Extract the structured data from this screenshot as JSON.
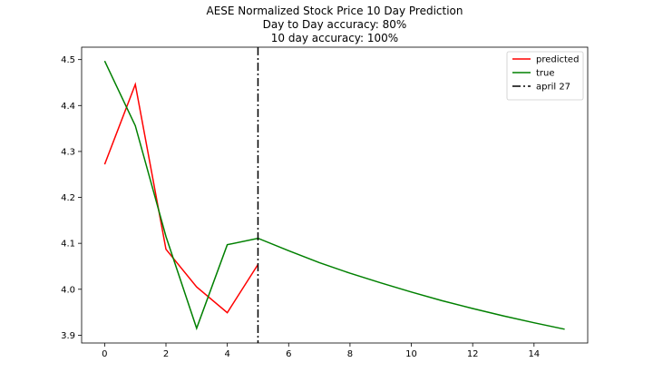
{
  "chart_data": {
    "type": "line",
    "title_lines": [
      "AESE Normalized Stock Price 10 Day Prediction",
      "Day to Day accuracy: 80%",
      "10 day accuracy: 100%"
    ],
    "xlabel": "",
    "ylabel": "",
    "xlim": [
      -0.75,
      15.75
    ],
    "ylim": [
      3.883,
      4.527
    ],
    "xticks": [
      0,
      2,
      4,
      6,
      8,
      10,
      12,
      14
    ],
    "yticks": [
      3.9,
      4.0,
      4.1,
      4.2,
      4.3,
      4.4,
      4.5
    ],
    "grid": false,
    "legend_position": "top-right",
    "series": [
      {
        "name": "predicted",
        "color": "#ff0000",
        "style": "solid",
        "x": [
          0,
          1,
          2,
          3,
          4,
          5
        ],
        "y": [
          4.272,
          4.446,
          4.087,
          4.005,
          3.949,
          4.054
        ]
      },
      {
        "name": "true",
        "color": "#008000",
        "style": "solid",
        "x": [
          0,
          1,
          2,
          3,
          4,
          5,
          6,
          7,
          8,
          9,
          10,
          11,
          12,
          13,
          14,
          15
        ],
        "y": [
          4.497,
          4.356,
          4.115,
          3.915,
          4.097,
          4.111,
          4.084,
          4.058,
          4.035,
          4.014,
          3.994,
          3.975,
          3.958,
          3.942,
          3.927,
          3.913
        ]
      }
    ],
    "vlines": [
      {
        "name": "april 27",
        "x": 5,
        "color": "#000000",
        "style": "dashdot"
      }
    ]
  }
}
